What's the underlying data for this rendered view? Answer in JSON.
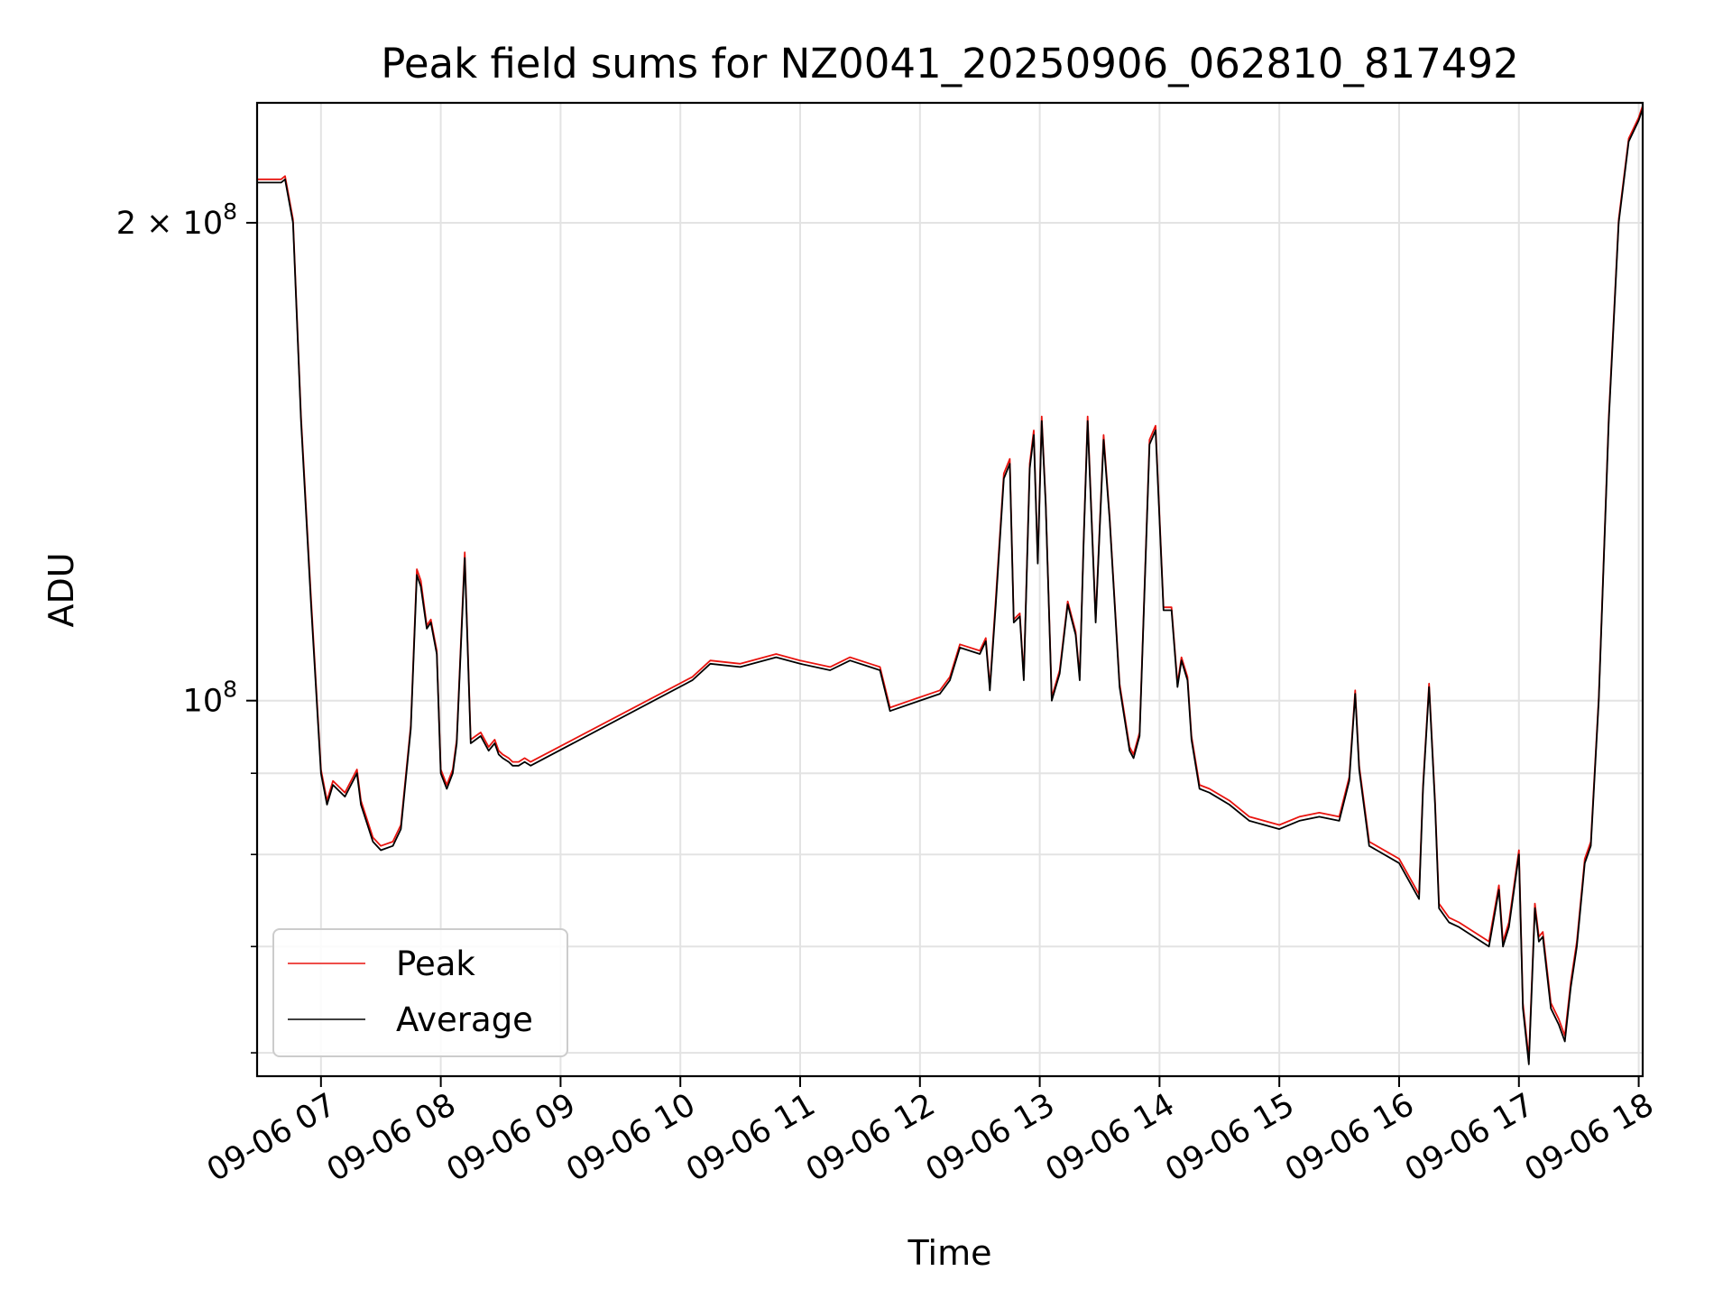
{
  "chart_data": {
    "type": "line",
    "title": "Peak field sums for NZ0041_20250906_062810_817492",
    "xlabel": "Time",
    "ylabel": "ADU",
    "yscale": "log",
    "ylim": [
      58000000,
      238000000
    ],
    "xlim": [
      "09-06 06:28",
      "09-06 18:02"
    ],
    "grid": true,
    "legend_position": "lower-left",
    "x_tick_labels": [
      "09-06 07",
      "09-06 08",
      "09-06 09",
      "09-06 10",
      "09-06 11",
      "09-06 12",
      "09-06 13",
      "09-06 14",
      "09-06 15",
      "09-06 16",
      "09-06 17",
      "09-06 18"
    ],
    "y_tick_labels": [
      {
        "mantissa": "2",
        "times": "×",
        "base": "10",
        "exp": "8",
        "value": 200000000
      },
      {
        "mantissa": "",
        "times": "",
        "base": "10",
        "exp": "8",
        "value": 100000000
      }
    ],
    "y_minor_ticks": [
      60000000,
      70000000,
      80000000,
      90000000
    ],
    "series": [
      {
        "name": "Peak",
        "color": "#e8140f"
      },
      {
        "name": "Average",
        "color": "#000000"
      }
    ],
    "x": [
      "09-06 06:28",
      "09-06 06:40",
      "09-06 06:42",
      "09-06 06:46",
      "09-06 06:50",
      "09-06 06:55",
      "09-06 07:00",
      "09-06 07:03",
      "09-06 07:06",
      "09-06 07:12",
      "09-06 07:18",
      "09-06 07:20",
      "09-06 07:26",
      "09-06 07:30",
      "09-06 07:36",
      "09-06 07:40",
      "09-06 07:45",
      "09-06 07:48",
      "09-06 07:50",
      "09-06 07:53",
      "09-06 07:55",
      "09-06 07:58",
      "09-06 08:00",
      "09-06 08:03",
      "09-06 08:06",
      "09-06 08:08",
      "09-06 08:12",
      "09-06 08:15",
      "09-06 08:20",
      "09-06 08:24",
      "09-06 08:27",
      "09-06 08:29",
      "09-06 08:31",
      "09-06 08:34",
      "09-06 08:36",
      "09-06 08:39",
      "09-06 08:42",
      "09-06 08:45",
      "09-06 10:06",
      "09-06 10:15",
      "09-06 10:30",
      "09-06 10:48",
      "09-06 11:00",
      "09-06 11:15",
      "09-06 11:25",
      "09-06 11:35",
      "09-06 11:40",
      "09-06 11:45",
      "09-06 11:55",
      "09-06 12:10",
      "09-06 12:15",
      "09-06 12:20",
      "09-06 12:30",
      "09-06 12:33",
      "09-06 12:35",
      "09-06 12:38",
      "09-06 12:42",
      "09-06 12:45",
      "09-06 12:47",
      "09-06 12:50",
      "09-06 12:52",
      "09-06 12:55",
      "09-06 12:57",
      "09-06 12:59",
      "09-06 13:01",
      "09-06 13:03",
      "09-06 13:06",
      "09-06 13:10",
      "09-06 13:14",
      "09-06 13:18",
      "09-06 13:20",
      "09-06 13:22",
      "09-06 13:24",
      "09-06 13:28",
      "09-06 13:32",
      "09-06 13:35",
      "09-06 13:40",
      "09-06 13:45",
      "09-06 13:47",
      "09-06 13:50",
      "09-06 13:55",
      "09-06 13:58",
      "09-06 14:02",
      "09-06 14:06",
      "09-06 14:09",
      "09-06 14:11",
      "09-06 14:14",
      "09-06 14:16",
      "09-06 14:20",
      "09-06 14:25",
      "09-06 14:35",
      "09-06 14:45",
      "09-06 15:00",
      "09-06 15:10",
      "09-06 15:20",
      "09-06 15:30",
      "09-06 15:35",
      "09-06 15:38",
      "09-06 15:40",
      "09-06 15:45",
      "09-06 16:00",
      "09-06 16:10",
      "09-06 16:12",
      "09-06 16:15",
      "09-06 16:18",
      "09-06 16:20",
      "09-06 16:25",
      "09-06 16:30",
      "09-06 16:45",
      "09-06 16:50",
      "09-06 16:52",
      "09-06 16:55",
      "09-06 17:00",
      "09-06 17:02",
      "09-06 17:05",
      "09-06 17:08",
      "09-06 17:10",
      "09-06 17:12",
      "09-06 17:16",
      "09-06 17:20",
      "09-06 17:23",
      "09-06 17:26",
      "09-06 17:29",
      "09-06 17:33",
      "09-06 17:36",
      "09-06 17:40",
      "09-06 17:45",
      "09-06 17:50",
      "09-06 17:55",
      "09-06 18:00",
      "09-06 18:02"
    ],
    "average": [
      212000000,
      212000000,
      213000000,
      200000000,
      150000000,
      115000000,
      90000000,
      86000000,
      88500000,
      87000000,
      90000000,
      86000000,
      81500000,
      80500000,
      81000000,
      83000000,
      96000000,
      120000000,
      118000000,
      111000000,
      112000000,
      107000000,
      90000000,
      88000000,
      90000000,
      94000000,
      123000000,
      94000000,
      95000000,
      93000000,
      94000000,
      92500000,
      92000000,
      91500000,
      91000000,
      91000000,
      91500000,
      91000000,
      103000000,
      105500000,
      105000000,
      106500000,
      105500000,
      104500000,
      106000000,
      105000000,
      104500000,
      98500000,
      99500000,
      101000000,
      103000000,
      108000000,
      107000000,
      109000000,
      101500000,
      115000000,
      138000000,
      141000000,
      112000000,
      113000000,
      103000000,
      140000000,
      147000000,
      122000000,
      150000000,
      133000000,
      100000000,
      104000000,
      115000000,
      110000000,
      103000000,
      126000000,
      150000000,
      112000000,
      146000000,
      130000000,
      102000000,
      93000000,
      92000000,
      95000000,
      145000000,
      148000000,
      114000000,
      114000000,
      102000000,
      106000000,
      103000000,
      94500000,
      88000000,
      87500000,
      86000000,
      84000000,
      83000000,
      84000000,
      84500000,
      84000000,
      89000000,
      101000000,
      90500000,
      81000000,
      79000000,
      75000000,
      88000000,
      102000000,
      86000000,
      74000000,
      72500000,
      72000000,
      70000000,
      76000000,
      70000000,
      72000000,
      80000000,
      64000000,
      59000000,
      74000000,
      70500000,
      71000000,
      64000000,
      62500000,
      61000000,
      66000000,
      70000000,
      79000000,
      81000000,
      100000000,
      150000000,
      200000000,
      225000000,
      232000000,
      236000000
    ],
    "peak": [
      213000000,
      213000000,
      214000000,
      201000000,
      151000000,
      116000000,
      90500000,
      86500000,
      89000000,
      87500000,
      90500000,
      86500000,
      82000000,
      81000000,
      81500000,
      83500000,
      96500000,
      121000000,
      119000000,
      111500000,
      112500000,
      107500000,
      90500000,
      88500000,
      90500000,
      94500000,
      124000000,
      94500000,
      95500000,
      93500000,
      94500000,
      93000000,
      92500000,
      92000000,
      91500000,
      91500000,
      92000000,
      91500000,
      103500000,
      106000000,
      105500000,
      107000000,
      106000000,
      105000000,
      106500000,
      105500000,
      105000000,
      99000000,
      100000000,
      101500000,
      103500000,
      108500000,
      107500000,
      109500000,
      102000000,
      116000000,
      139000000,
      142000000,
      112500000,
      113500000,
      103500000,
      141000000,
      148000000,
      122500000,
      151000000,
      133500000,
      100500000,
      104500000,
      115500000,
      110500000,
      103500000,
      126500000,
      151000000,
      112500000,
      147000000,
      130500000,
      102500000,
      93500000,
      92500000,
      95500000,
      146000000,
      149000000,
      114500000,
      114500000,
      102500000,
      106500000,
      103500000,
      95000000,
      88500000,
      88000000,
      86500000,
      84500000,
      83500000,
      84500000,
      85000000,
      84500000,
      89500000,
      101500000,
      91000000,
      81500000,
      79500000,
      75500000,
      88500000,
      102500000,
      86500000,
      74500000,
      73000000,
      72500000,
      70500000,
      76500000,
      70500000,
      72500000,
      80500000,
      64500000,
      59500000,
      74500000,
      71000000,
      71500000,
      64500000,
      63000000,
      61500000,
      66500000,
      70500000,
      79500000,
      81500000,
      100500000,
      151000000,
      201000000,
      226000000,
      233000000,
      237000000
    ]
  }
}
